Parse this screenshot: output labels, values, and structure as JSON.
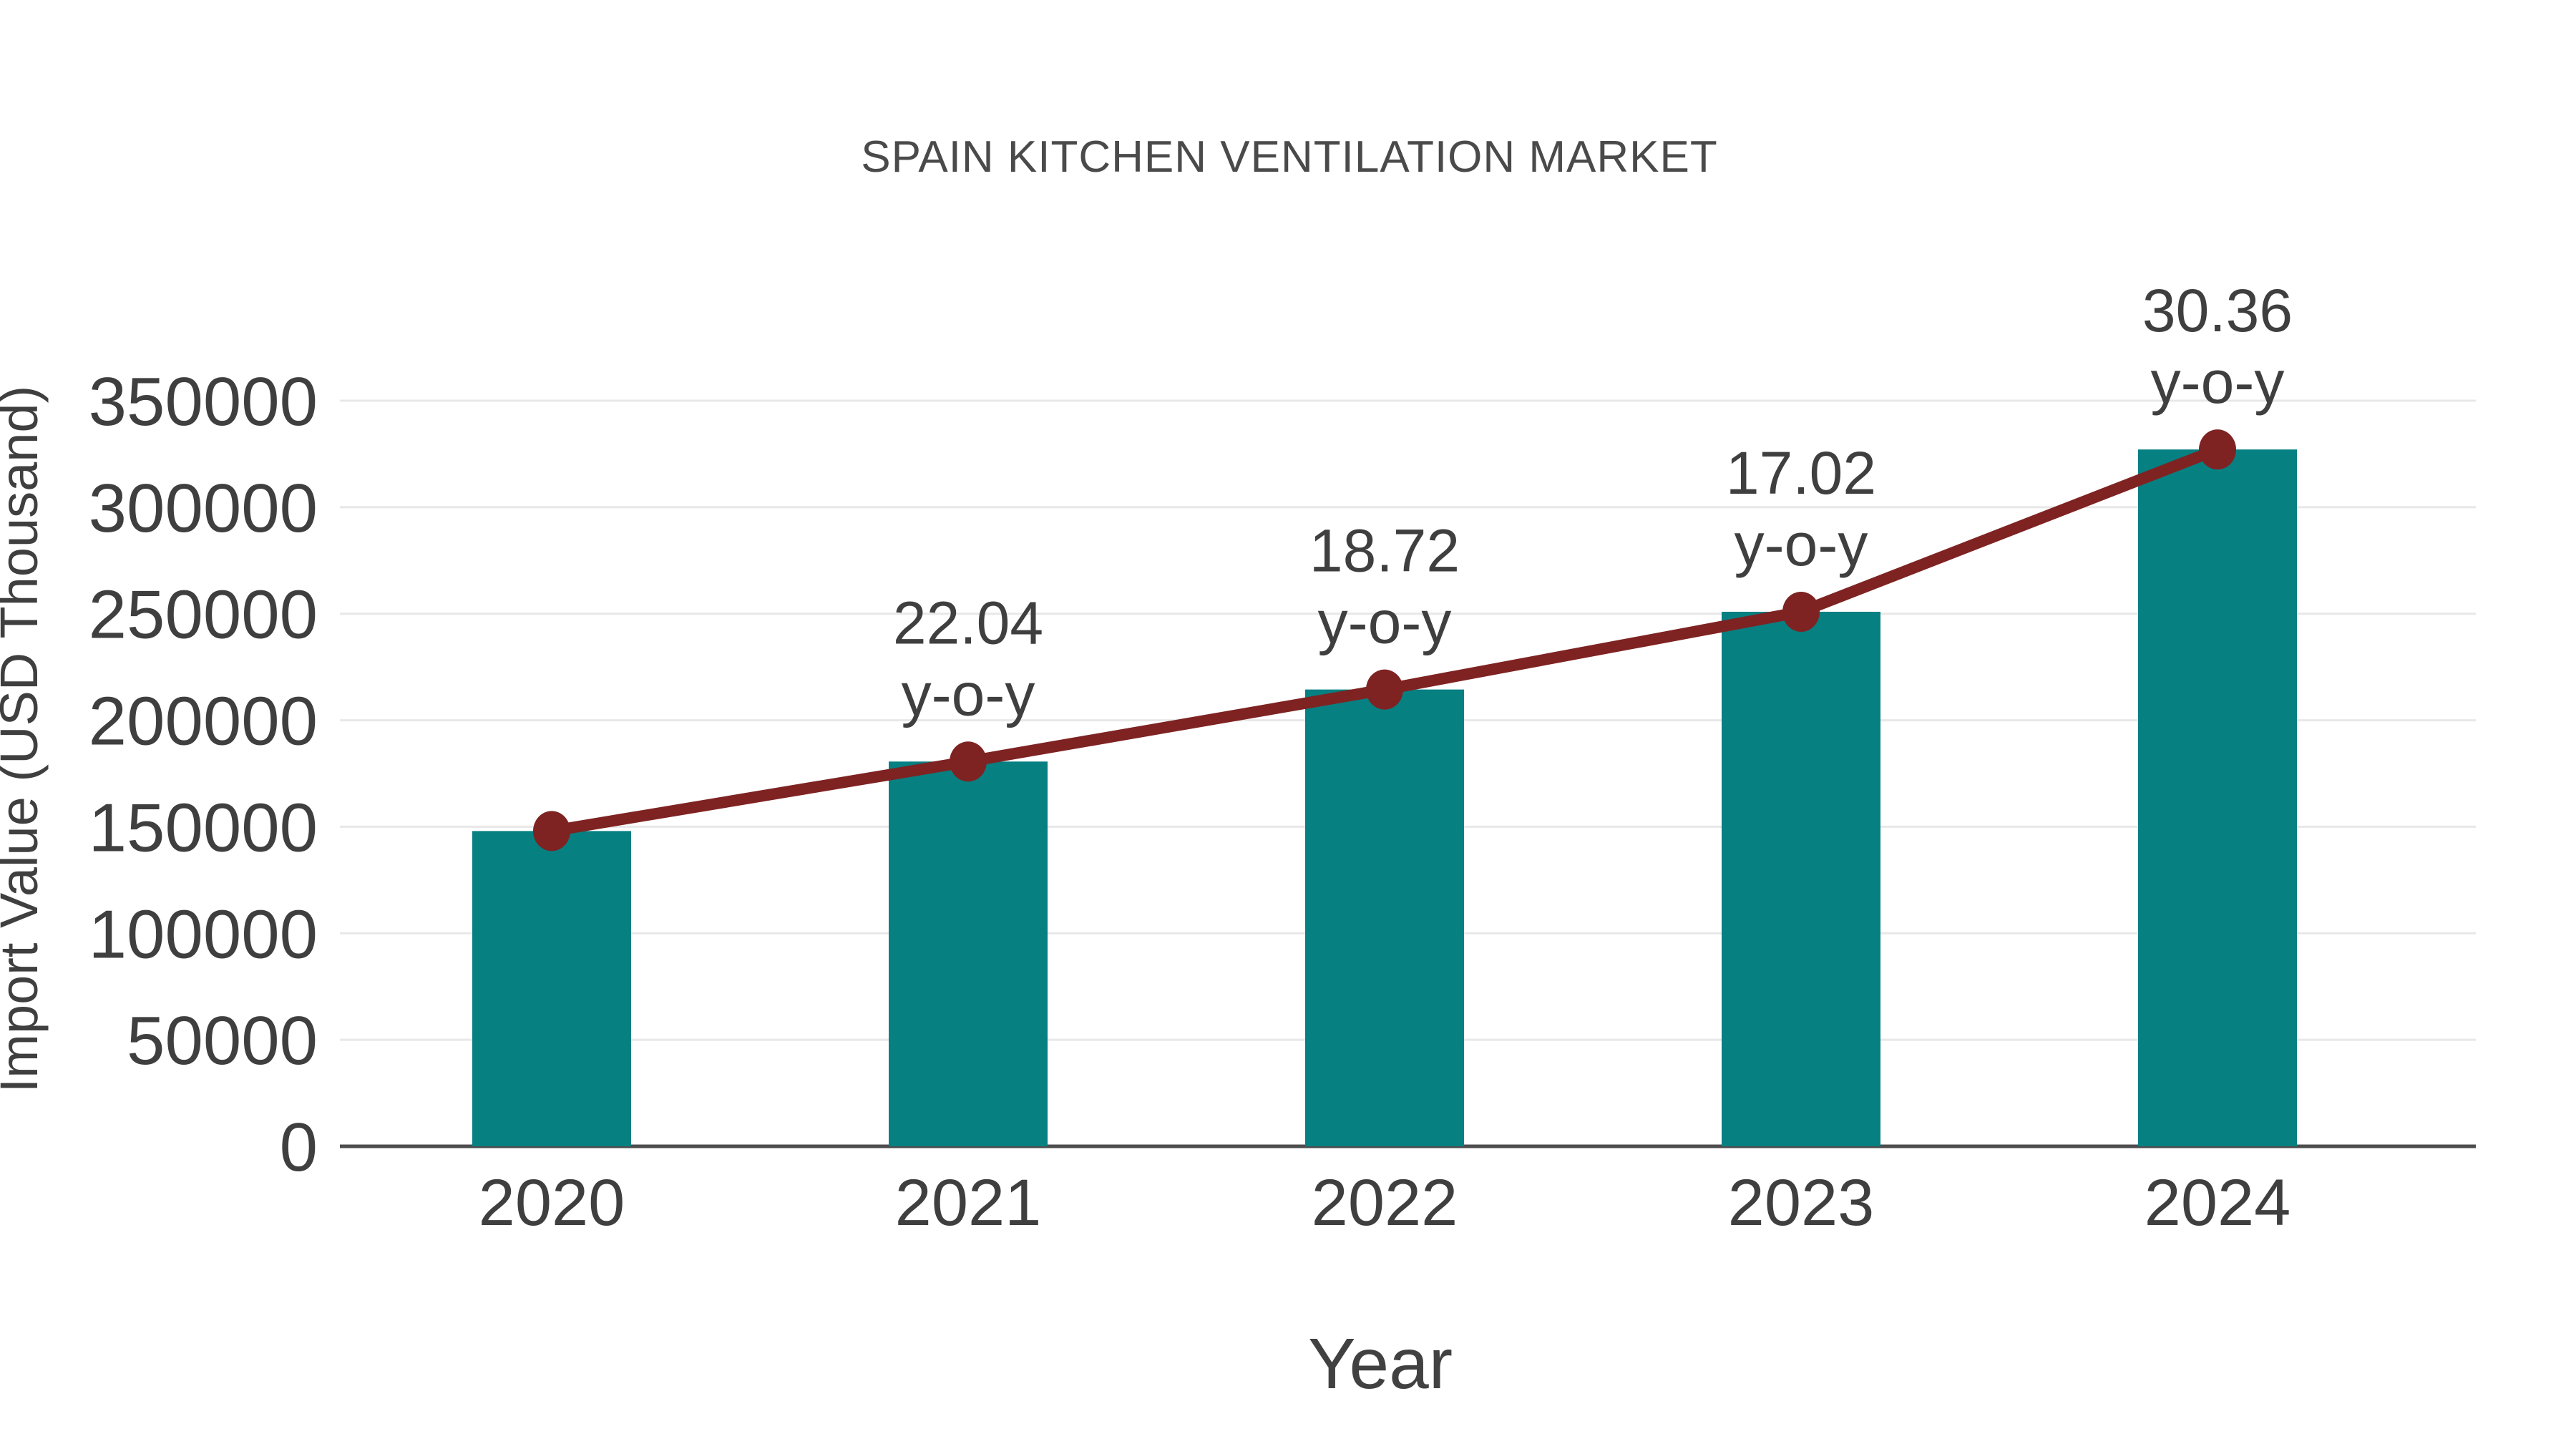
{
  "chart_data": {
    "type": "bar",
    "title": "SPAIN KITCHEN VENTILATION MARKET",
    "xlabel": "Year",
    "ylabel": "Import Value (USD Thousand)",
    "categories": [
      "2020",
      "2021",
      "2022",
      "2023",
      "2024"
    ],
    "series": [
      {
        "name": "Import Value (USD Thousand)",
        "type": "bar",
        "color": "#078082",
        "values": [
          148000,
          180619,
          214431,
          250927,
          327109
        ]
      },
      {
        "name": "y-o-y growth",
        "type": "line",
        "color": "#7e2322",
        "values": [
          148000,
          180619,
          214431,
          250927,
          327109
        ],
        "point_labels": [
          "",
          "22.04",
          "18.72",
          "17.02",
          "30.36"
        ],
        "point_label_line2": "y-o-y"
      }
    ],
    "yticks": [
      0,
      50000,
      100000,
      150000,
      200000,
      250000,
      300000,
      350000
    ],
    "ylim": [
      0,
      350000
    ],
    "grid": "horizontal",
    "legend": "none",
    "background": "#ffffff",
    "colors": {
      "grid_line": "#e8e8e8",
      "axis_line": "#4d4d4d",
      "tick_text": "#3f3f3f",
      "title_text": "#4a4a4a"
    }
  }
}
